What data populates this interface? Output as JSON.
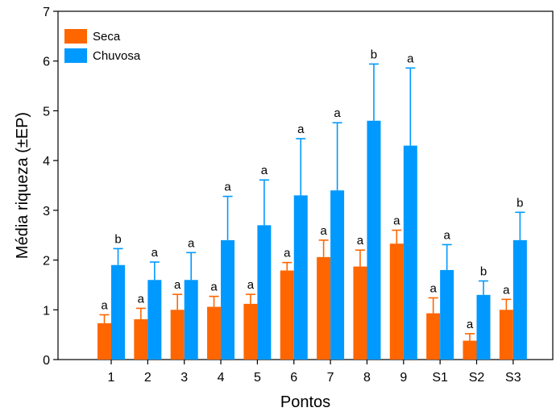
{
  "chart_data": {
    "type": "bar",
    "title": "",
    "xlabel": "Pontos",
    "ylabel": "Média riqueza (±EP)",
    "ylim": [
      0,
      7
    ],
    "yticks": [
      0,
      1,
      2,
      3,
      4,
      5,
      6,
      7
    ],
    "grid": false,
    "legend_position": "top-left",
    "categories": [
      "1",
      "2",
      "3",
      "4",
      "5",
      "6",
      "7",
      "8",
      "9",
      "S1",
      "S2",
      "S3"
    ],
    "series": [
      {
        "name": "Seca",
        "color": "#ff6600",
        "values": [
          0.73,
          0.81,
          1.0,
          1.06,
          1.12,
          1.79,
          2.06,
          1.87,
          2.33,
          0.93,
          0.38,
          1.0
        ],
        "error": [
          0.17,
          0.22,
          0.31,
          0.21,
          0.19,
          0.16,
          0.34,
          0.33,
          0.27,
          0.31,
          0.14,
          0.21
        ],
        "labels": [
          "a",
          "a",
          "a",
          "a",
          "a",
          "a",
          "a",
          "a",
          "a",
          "a",
          "a",
          "a"
        ]
      },
      {
        "name": "Chuvosa",
        "color": "#0099ff",
        "values": [
          1.9,
          1.6,
          1.6,
          2.4,
          2.7,
          3.3,
          3.4,
          4.8,
          4.3,
          1.8,
          1.3,
          2.4
        ],
        "error": [
          0.33,
          0.36,
          0.55,
          0.88,
          0.91,
          1.14,
          1.36,
          1.14,
          1.56,
          0.51,
          0.28,
          0.56
        ],
        "labels": [
          "b",
          "a",
          "a",
          "a",
          "a",
          "a",
          "a",
          "b",
          "a",
          "a",
          "b",
          "b"
        ]
      }
    ]
  }
}
